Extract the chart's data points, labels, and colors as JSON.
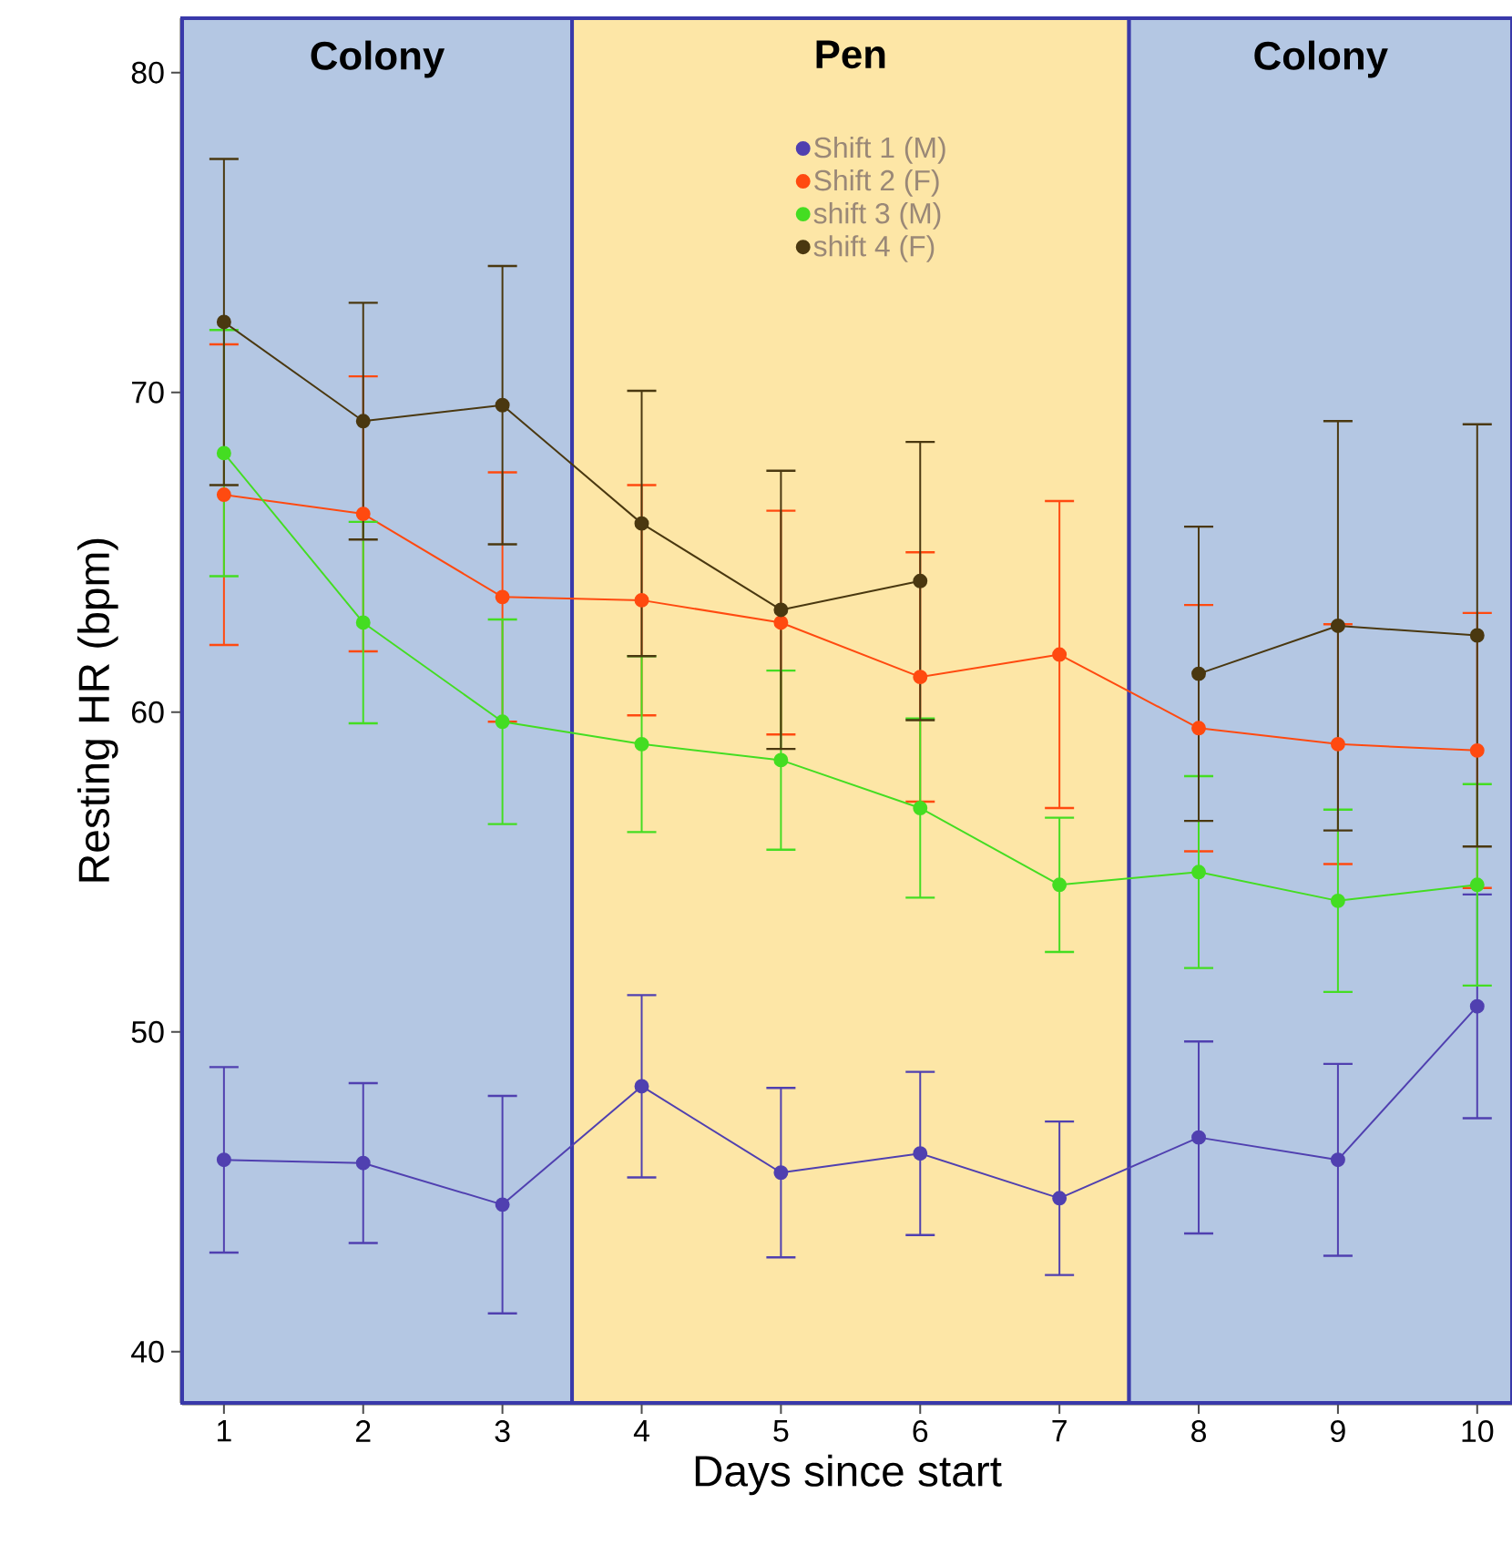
{
  "chart_data": {
    "type": "line",
    "xlabel": "Days since start",
    "ylabel": "Resting HR (bpm)",
    "x": [
      1,
      2,
      3,
      4,
      5,
      6,
      7,
      8,
      9,
      10
    ],
    "series": [
      {
        "name": "Shift 1 (M)",
        "color": "#5040b0",
        "values": [
          46.0,
          45.9,
          44.6,
          48.3,
          45.6,
          46.2,
          44.8,
          46.7,
          46.0,
          50.8
        ],
        "errors": [
          2.9,
          2.5,
          3.4,
          2.85,
          2.65,
          2.55,
          2.4,
          3.0,
          3.0,
          3.5
        ]
      },
      {
        "name": "Shift 2 (F)",
        "color": "#ff4a10",
        "values": [
          66.8,
          66.2,
          63.6,
          63.5,
          62.8,
          61.1,
          61.8,
          59.5,
          59.0,
          58.8
        ],
        "errors": [
          4.7,
          4.3,
          3.9,
          3.6,
          3.5,
          3.9,
          4.8,
          3.85,
          3.75,
          4.3
        ]
      },
      {
        "name": "shift 3 (M)",
        "color": "#44dd22",
        "values": [
          68.1,
          62.8,
          59.7,
          59.0,
          58.5,
          57.0,
          54.6,
          55.0,
          54.1,
          54.6
        ],
        "errors": [
          3.85,
          3.15,
          3.2,
          2.75,
          2.8,
          2.8,
          2.1,
          3.0,
          2.85,
          3.15
        ]
      },
      {
        "name": "shift 4 (F)",
        "color": "#4a3810",
        "values": [
          72.2,
          69.1,
          69.6,
          65.9,
          63.2,
          64.1,
          null,
          61.2,
          62.7,
          62.4
        ],
        "errors": [
          5.1,
          3.7,
          4.35,
          4.15,
          4.35,
          4.35,
          null,
          4.6,
          6.4,
          6.6
        ]
      }
    ],
    "bands": [
      {
        "axis": "x",
        "from": 0.7,
        "to": 3.5,
        "label": "Colony",
        "color": "#b4c7e3"
      },
      {
        "axis": "x",
        "from": 3.5,
        "to": 7.5,
        "label": "Pen",
        "color": "#fde6a6"
      },
      {
        "axis": "x",
        "from": 7.5,
        "to": 10.25,
        "label": "Colony",
        "color": "#b4c7e3"
      }
    ],
    "xlim": [
      0.7,
      10.25
    ],
    "ylim": [
      38.4,
      81.7
    ],
    "xticks": [
      1,
      2,
      3,
      4,
      5,
      6,
      7,
      8,
      9,
      10
    ],
    "yticks": [
      40,
      50,
      60,
      70,
      80
    ],
    "marker": "circle",
    "legend": "top"
  }
}
